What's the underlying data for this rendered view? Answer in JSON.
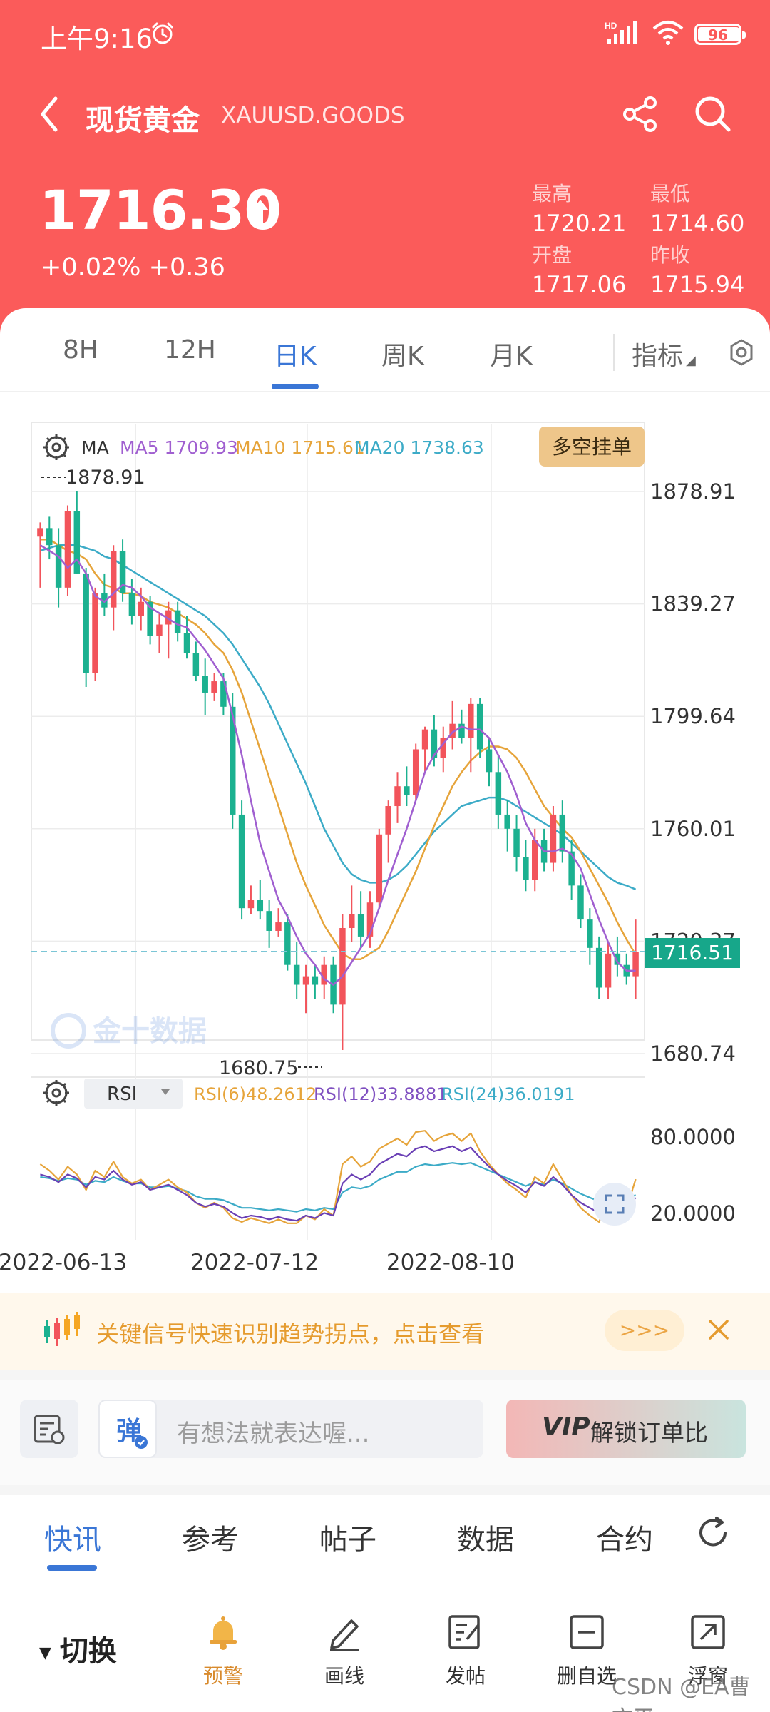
{
  "status_bar": {
    "time": "上午9:16",
    "network": "HD",
    "battery": "96"
  },
  "nav": {
    "title": "现货黄金",
    "symbol": "XAUUSD.GOODS"
  },
  "quote": {
    "price": "1716.30",
    "change": "+0.02% +0.36",
    "high_label": "最高",
    "high": "1720.21",
    "low_label": "最低",
    "low": "1714.60",
    "open_label": "开盘",
    "open": "1717.06",
    "prev_close_label": "昨收",
    "prev_close": "1715.94"
  },
  "period_tabs": [
    "8H",
    "12H",
    "日K",
    "周K",
    "月K"
  ],
  "active_period": "日K",
  "indicator_label": "指标",
  "chart": {
    "ma_label": "MA",
    "ma5": "MA5 1709.93",
    "ma10": "MA10 1715.61",
    "ma20": "MA20 1738.63",
    "order_button": "多空挂单",
    "max_marker": "1878.91",
    "min_marker": "1680.75",
    "current_price_tag": "1716.51",
    "y_ticks": [
      "1878.91",
      "1839.27",
      "1799.64",
      "1760.01",
      "1720.37",
      "1680.74"
    ],
    "x_ticks": [
      "2022-06-13",
      "2022-07-12",
      "2022-08-10"
    ],
    "watermark": "金十数据",
    "rsi_selector": "RSI",
    "rsi6": "RSI(6)48.2612",
    "rsi12": "RSI(12)33.8881",
    "rsi24": "RSI(24)36.0191",
    "rsi_ticks": [
      "80.0000",
      "20.0000"
    ],
    "colors": {
      "up": "#f2545b",
      "down": "#1bb190",
      "ma5": "#a05fd0",
      "ma10": "#e6a43a",
      "ma20": "#3cabc7"
    }
  },
  "chart_data": {
    "type": "candlestick",
    "y_range": [
      1680.74,
      1878.91
    ],
    "ohlc": [
      [
        1863,
        1868,
        1845,
        1866
      ],
      [
        1866,
        1870,
        1855,
        1860
      ],
      [
        1860,
        1866,
        1838,
        1845
      ],
      [
        1845,
        1874,
        1842,
        1872
      ],
      [
        1872,
        1878.91,
        1850,
        1850
      ],
      [
        1850,
        1852,
        1810,
        1815
      ],
      [
        1815,
        1845,
        1812,
        1843
      ],
      [
        1843,
        1850,
        1835,
        1838
      ],
      [
        1838,
        1860,
        1830,
        1858
      ],
      [
        1858,
        1862,
        1840,
        1843
      ],
      [
        1843,
        1848,
        1832,
        1835
      ],
      [
        1835,
        1845,
        1830,
        1840
      ],
      [
        1840,
        1842,
        1825,
        1828
      ],
      [
        1828,
        1836,
        1822,
        1832
      ],
      [
        1832,
        1840,
        1820,
        1837
      ],
      [
        1837,
        1840,
        1826,
        1829
      ],
      [
        1829,
        1835,
        1820,
        1822
      ],
      [
        1822,
        1826,
        1812,
        1814
      ],
      [
        1814,
        1820,
        1800,
        1808
      ],
      [
        1808,
        1815,
        1805,
        1812
      ],
      [
        1812,
        1815,
        1800,
        1803
      ],
      [
        1803,
        1808,
        1760,
        1765
      ],
      [
        1765,
        1770,
        1728,
        1732
      ],
      [
        1732,
        1740,
        1730,
        1735
      ],
      [
        1735,
        1742,
        1728,
        1731
      ],
      [
        1731,
        1735,
        1718,
        1724
      ],
      [
        1724,
        1732,
        1722,
        1727
      ],
      [
        1727,
        1730,
        1710,
        1712
      ],
      [
        1712,
        1720,
        1700,
        1705
      ],
      [
        1705,
        1712,
        1695,
        1708
      ],
      [
        1708,
        1712,
        1700,
        1705
      ],
      [
        1705,
        1715,
        1700,
        1712
      ],
      [
        1712,
        1715,
        1695,
        1698
      ],
      [
        1698,
        1730,
        1682,
        1725
      ],
      [
        1725,
        1740,
        1720,
        1730
      ],
      [
        1730,
        1738,
        1718,
        1722
      ],
      [
        1722,
        1738,
        1718,
        1734
      ],
      [
        1734,
        1760,
        1732,
        1758
      ],
      [
        1758,
        1770,
        1748,
        1768
      ],
      [
        1768,
        1780,
        1762,
        1775
      ],
      [
        1775,
        1782,
        1768,
        1772
      ],
      [
        1772,
        1790,
        1770,
        1788
      ],
      [
        1788,
        1796,
        1780,
        1795
      ],
      [
        1795,
        1800,
        1782,
        1785
      ],
      [
        1785,
        1796,
        1780,
        1792
      ],
      [
        1792,
        1805,
        1788,
        1797
      ],
      [
        1797,
        1802,
        1790,
        1792
      ],
      [
        1792,
        1806,
        1780,
        1804
      ],
      [
        1804,
        1806,
        1785,
        1788
      ],
      [
        1788,
        1792,
        1775,
        1780
      ],
      [
        1780,
        1786,
        1760,
        1765
      ],
      [
        1765,
        1770,
        1752,
        1760
      ],
      [
        1760,
        1765,
        1745,
        1750
      ],
      [
        1750,
        1756,
        1738,
        1742
      ],
      [
        1742,
        1760,
        1738,
        1756
      ],
      [
        1756,
        1760,
        1745,
        1748
      ],
      [
        1748,
        1768,
        1745,
        1765
      ],
      [
        1765,
        1770,
        1748,
        1752
      ],
      [
        1752,
        1756,
        1735,
        1740
      ],
      [
        1740,
        1744,
        1725,
        1728
      ],
      [
        1728,
        1732,
        1712,
        1718
      ],
      [
        1718,
        1722,
        1700,
        1704
      ],
      [
        1704,
        1720,
        1700,
        1716
      ],
      [
        1716,
        1722,
        1708,
        1712
      ],
      [
        1712,
        1716,
        1705,
        1708
      ],
      [
        1708,
        1728,
        1700,
        1716.51
      ]
    ],
    "ma5": [
      1860,
      1858,
      1856,
      1852,
      1855,
      1850,
      1842,
      1840,
      1843,
      1846,
      1845,
      1842,
      1838,
      1836,
      1834,
      1832,
      1831,
      1827,
      1823,
      1818,
      1813,
      1800,
      1786,
      1770,
      1755,
      1745,
      1735,
      1729,
      1722,
      1716,
      1712,
      1707,
      1705,
      1708,
      1713,
      1718,
      1723,
      1732,
      1742,
      1751,
      1760,
      1770,
      1780,
      1786,
      1790,
      1794,
      1796,
      1795,
      1795,
      1792,
      1786,
      1780,
      1772,
      1762,
      1756,
      1752,
      1752,
      1753,
      1751,
      1746,
      1737,
      1728,
      1720,
      1713,
      1710,
      1709.93
    ],
    "ma10": [
      1862,
      1862,
      1860,
      1858,
      1857,
      1855,
      1850,
      1846,
      1845,
      1843,
      1843,
      1842,
      1840,
      1839,
      1838,
      1836,
      1834,
      1832,
      1829,
      1825,
      1822,
      1816,
      1808,
      1798,
      1788,
      1778,
      1768,
      1758,
      1748,
      1740,
      1733,
      1726,
      1721,
      1716,
      1714,
      1714,
      1716,
      1718,
      1724,
      1731,
      1738,
      1745,
      1753,
      1761,
      1768,
      1775,
      1780,
      1784,
      1787,
      1789,
      1789,
      1788,
      1785,
      1780,
      1774,
      1768,
      1764,
      1760,
      1757,
      1752,
      1746,
      1740,
      1734,
      1727,
      1721,
      1715.61
    ],
    "ma20": [
      1858,
      1859,
      1860,
      1860,
      1860,
      1859,
      1858,
      1856,
      1855,
      1853,
      1851,
      1849,
      1847,
      1845,
      1843,
      1841,
      1839,
      1837,
      1835,
      1832,
      1829,
      1825,
      1820,
      1815,
      1810,
      1804,
      1797,
      1790,
      1783,
      1776,
      1768,
      1760,
      1754,
      1748,
      1744,
      1742,
      1741,
      1741,
      1742,
      1744,
      1747,
      1751,
      1755,
      1759,
      1762,
      1765,
      1768,
      1769,
      1770,
      1771,
      1771,
      1770,
      1768,
      1766,
      1764,
      1762,
      1760,
      1758,
      1755,
      1752,
      1749,
      1746,
      1743,
      1741,
      1740,
      1738.63
    ],
    "rsi_range": [
      0,
      100
    ],
    "rsi6": [
      60,
      55,
      48,
      58,
      52,
      40,
      55,
      50,
      62,
      50,
      45,
      48,
      40,
      44,
      48,
      42,
      38,
      30,
      26,
      30,
      26,
      18,
      15,
      18,
      16,
      14,
      17,
      14,
      14,
      20,
      17,
      25,
      20,
      60,
      66,
      58,
      62,
      72,
      76,
      80,
      75,
      85,
      86,
      78,
      82,
      84,
      78,
      84,
      70,
      60,
      52,
      45,
      40,
      34,
      50,
      45,
      60,
      48,
      36,
      26,
      20,
      15,
      32,
      28,
      25,
      48.26
    ],
    "rsi12": [
      52,
      50,
      46,
      52,
      49,
      42,
      50,
      48,
      55,
      48,
      44,
      46,
      40,
      42,
      44,
      40,
      36,
      30,
      27,
      29,
      27,
      22,
      18,
      20,
      19,
      17,
      19,
      17,
      16,
      20,
      18,
      22,
      20,
      45,
      52,
      48,
      52,
      60,
      64,
      68,
      66,
      72,
      74,
      70,
      72,
      74,
      70,
      73,
      65,
      58,
      52,
      47,
      43,
      38,
      46,
      43,
      50,
      44,
      36,
      30,
      26,
      22,
      30,
      28,
      26,
      33.89
    ],
    "rsi24": [
      50,
      49,
      47,
      49,
      48,
      44,
      47,
      46,
      50,
      47,
      45,
      45,
      42,
      42,
      43,
      41,
      39,
      35,
      33,
      33,
      32,
      29,
      26,
      26,
      25,
      24,
      25,
      24,
      23,
      25,
      24,
      26,
      25,
      38,
      42,
      41,
      43,
      48,
      51,
      54,
      54,
      58,
      60,
      59,
      60,
      61,
      60,
      61,
      58,
      55,
      52,
      49,
      46,
      43,
      46,
      44,
      48,
      45,
      41,
      37,
      34,
      31,
      35,
      34,
      33,
      36.02
    ]
  },
  "banner": {
    "text": "关键信号快速识别趋势拐点，点击查看",
    "more": ">>>"
  },
  "comment": {
    "placeholder": "有想法就表达喔...",
    "badge": "弹",
    "vip_logo": "VIP",
    "vip_button": "解锁订单比"
  },
  "news_tabs": [
    "快讯",
    "参考",
    "帖子",
    "数据",
    "合约"
  ],
  "toolbar": {
    "switch": "切换",
    "items": [
      "预警",
      "画线",
      "发帖",
      "删自选",
      "浮窗"
    ]
  },
  "watermark": "CSDN @EA曹文平"
}
